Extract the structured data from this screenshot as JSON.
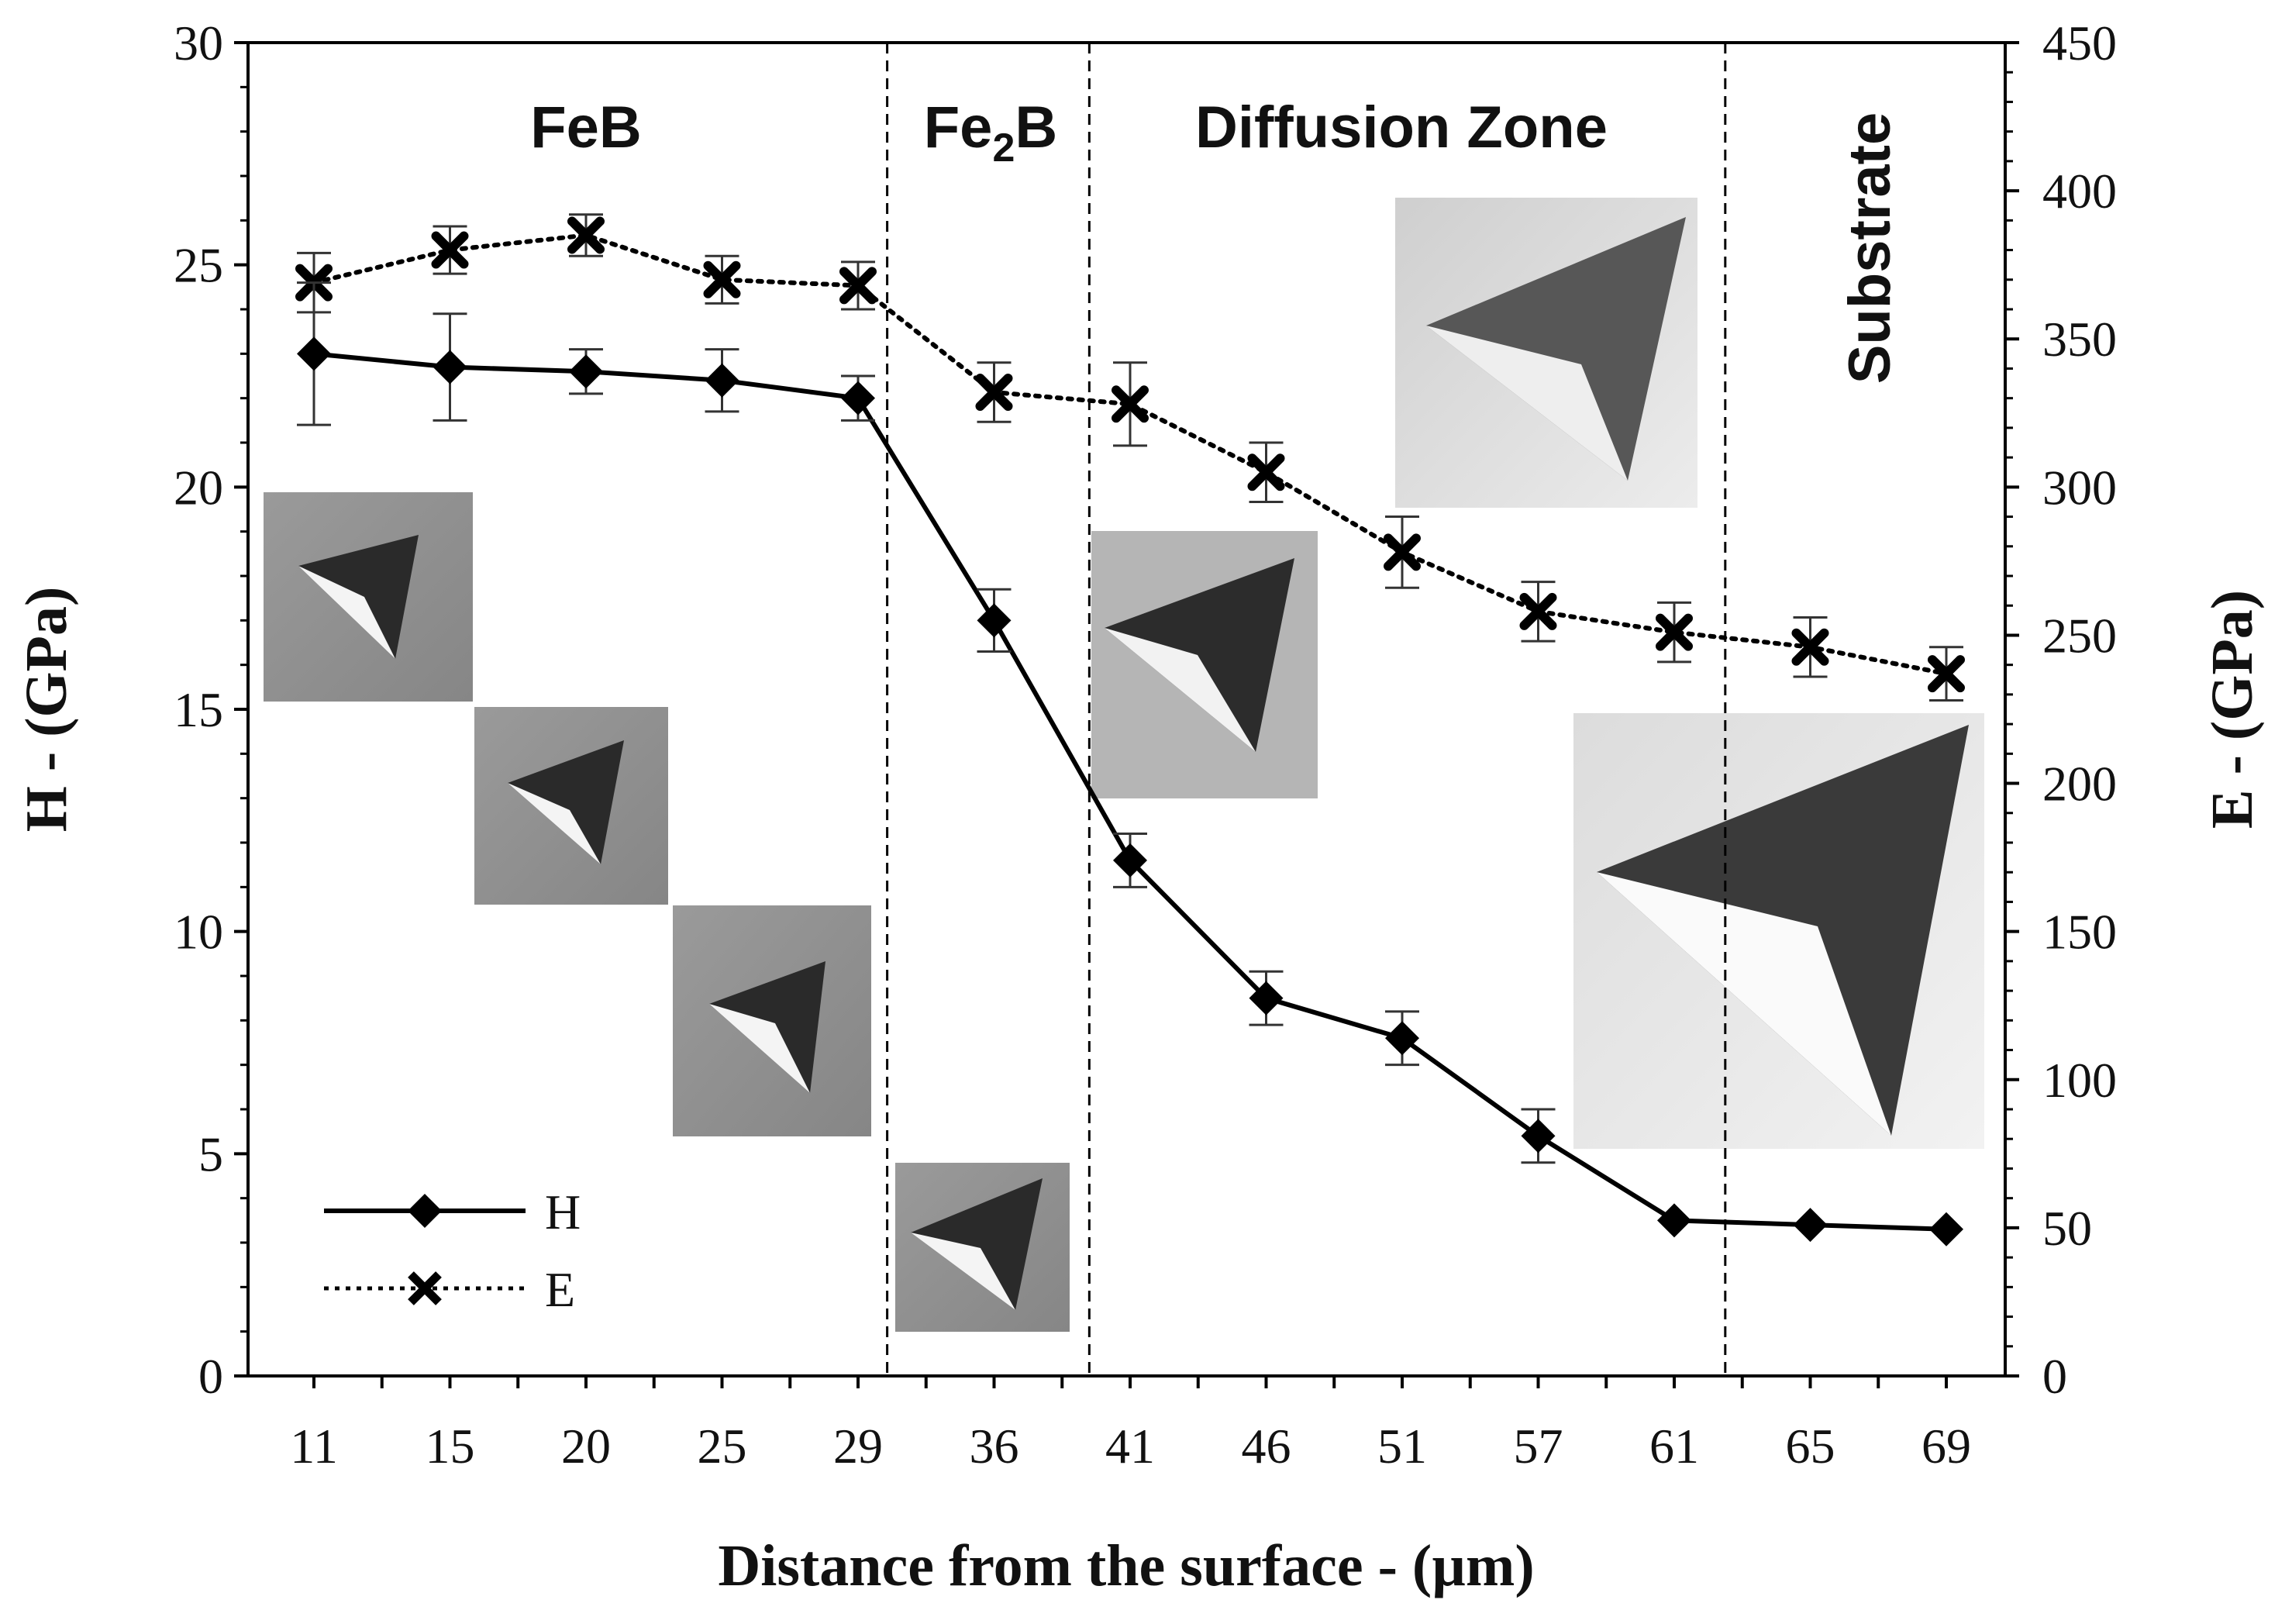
{
  "chart_data": {
    "type": "line",
    "title": "",
    "xlabel": "Distance from the surface - (µm)",
    "ylabel_left": "H - (GPa)",
    "ylabel_right": "E - (GPa)",
    "ylim_left": [
      0,
      30
    ],
    "ylim_right": [
      0,
      450
    ],
    "y_ticks_left": [
      "0",
      "5",
      "10",
      "15",
      "20",
      "25",
      "30"
    ],
    "y_ticks_right": [
      "0",
      "50",
      "100",
      "150",
      "200",
      "250",
      "300",
      "350",
      "400",
      "450"
    ],
    "categories": [
      "11",
      "15",
      "20",
      "25",
      "29",
      "36",
      "41",
      "46",
      "51",
      "57",
      "61",
      "65",
      "69"
    ],
    "series": [
      {
        "name": "H",
        "axis": "left",
        "style": "solid",
        "marker": "diamond",
        "values": [
          23.0,
          22.7,
          22.6,
          22.4,
          22.0,
          17.0,
          11.6,
          8.5,
          7.6,
          5.4,
          3.5,
          3.4,
          3.3
        ],
        "error": [
          1.6,
          1.2,
          0.5,
          0.7,
          0.5,
          0.7,
          0.6,
          0.6,
          0.6,
          0.6,
          0.0,
          0.0,
          0.0
        ]
      },
      {
        "name": "E",
        "axis": "right",
        "style": "dotted",
        "marker": "x",
        "values": [
          369,
          380,
          385,
          370,
          368,
          332,
          328,
          305,
          278,
          258,
          251,
          246,
          237
        ],
        "error": [
          10,
          8,
          7,
          8,
          8,
          10,
          14,
          10,
          12,
          10,
          10,
          10,
          9
        ]
      }
    ],
    "zones": [
      {
        "label": "FeB",
        "sub": ""
      },
      {
        "label": "Fe",
        "sub": "2",
        "suffix": "B"
      },
      {
        "label": "Diffusion Zone",
        "sub": ""
      },
      {
        "label": "Substrate",
        "sub": ""
      }
    ],
    "zone_boundaries": [
      30.5,
      39.5,
      62.5
    ],
    "legend": [
      "H",
      "E"
    ],
    "legend_position": "bottom-left",
    "grid": false
  }
}
